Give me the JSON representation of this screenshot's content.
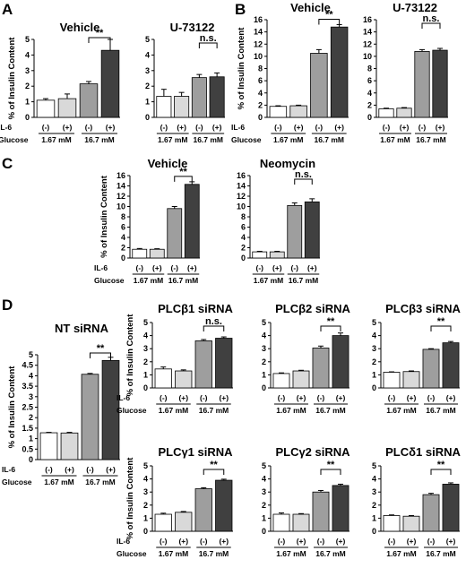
{
  "panel_labels": [
    "A",
    "B",
    "C",
    "D"
  ],
  "chart_data": [
    {
      "type": "bar",
      "panel": "A",
      "title": "Vehicle",
      "ylabel": "% of Insulin Content",
      "ylim": [
        0,
        5
      ],
      "yticks": [
        0,
        1,
        2,
        3,
        4,
        5
      ],
      "categories": [
        "(-)",
        "(+)",
        "(-)",
        "(+)"
      ],
      "row_labels": [
        "IL-6",
        "Glucose"
      ],
      "groups": [
        "1.67 mM",
        "16.7 mM"
      ],
      "values": [
        1.1,
        1.2,
        2.15,
        4.3
      ],
      "errors": [
        0.1,
        0.3,
        0.15,
        0.7
      ],
      "significance": "**"
    },
    {
      "type": "bar",
      "panel": "A",
      "title": "U-73122",
      "ylabel": "",
      "ylim": [
        0,
        5
      ],
      "yticks": [
        0,
        1,
        2,
        3,
        4,
        5
      ],
      "categories": [
        "(-)",
        "(+)",
        "(-)",
        "(+)"
      ],
      "row_labels": [
        "",
        ""
      ],
      "groups": [
        "1.67 mM",
        "16.7 mM"
      ],
      "values": [
        1.35,
        1.35,
        2.55,
        2.6
      ],
      "errors": [
        0.45,
        0.25,
        0.2,
        0.25
      ],
      "significance": "n.s."
    },
    {
      "type": "bar",
      "panel": "B",
      "title": "Vehicle",
      "ylabel": "% of Insulin Content",
      "ylim": [
        0,
        16
      ],
      "yticks": [
        0,
        2,
        4,
        6,
        8,
        10,
        12,
        14,
        16
      ],
      "categories": [
        "(-)",
        "(+)",
        "(-)",
        "(+)"
      ],
      "row_labels": [
        "IL-6",
        "Glucose"
      ],
      "groups": [
        "1.67 mM",
        "16.7 mM"
      ],
      "values": [
        1.8,
        1.9,
        10.5,
        14.8
      ],
      "errors": [
        0.1,
        0.1,
        0.6,
        0.4
      ],
      "significance": "**"
    },
    {
      "type": "bar",
      "panel": "B",
      "title": "U-73122",
      "ylabel": "",
      "ylim": [
        0,
        16
      ],
      "yticks": [
        0,
        2,
        4,
        6,
        8,
        10,
        12,
        14,
        16
      ],
      "categories": [
        "(-)",
        "(+)",
        "(-)",
        "(+)"
      ],
      "row_labels": [
        "",
        ""
      ],
      "groups": [
        "1.67 mM",
        "16.7 mM"
      ],
      "values": [
        1.4,
        1.5,
        10.8,
        11.0
      ],
      "errors": [
        0.1,
        0.1,
        0.3,
        0.3
      ],
      "significance": "n.s."
    },
    {
      "type": "bar",
      "panel": "C",
      "title": "Vehicle",
      "ylabel": "% of Insulin Content",
      "ylim": [
        0,
        16
      ],
      "yticks": [
        0,
        2,
        4,
        6,
        8,
        10,
        12,
        14,
        16
      ],
      "categories": [
        "(-)",
        "(+)",
        "(-)",
        "(+)"
      ],
      "row_labels": [
        "IL-6",
        "Glucose"
      ],
      "groups": [
        "1.67 mM",
        "16.7 mM"
      ],
      "values": [
        1.7,
        1.7,
        9.6,
        14.3
      ],
      "errors": [
        0.15,
        0.1,
        0.4,
        0.5
      ],
      "significance": "**"
    },
    {
      "type": "bar",
      "panel": "C",
      "title": "Neomycin",
      "ylabel": "",
      "ylim": [
        0,
        16
      ],
      "yticks": [
        0,
        2,
        4,
        6,
        8,
        10,
        12,
        14,
        16
      ],
      "categories": [
        "(-)",
        "(+)",
        "(-)",
        "(+)"
      ],
      "row_labels": [
        "",
        ""
      ],
      "groups": [
        "1.67 mM",
        "16.7 mM"
      ],
      "values": [
        1.2,
        1.2,
        10.2,
        10.9
      ],
      "errors": [
        0.1,
        0.1,
        0.5,
        0.6
      ],
      "significance": "n.s."
    },
    {
      "type": "bar",
      "panel": "D",
      "title": "NT siRNA",
      "ylabel": "% of Insulin Content",
      "ylim": [
        0,
        5
      ],
      "yticks": [
        0,
        0.5,
        1,
        1.5,
        2,
        2.5,
        3,
        3.5,
        4,
        4.5,
        5
      ],
      "categories": [
        "(-)",
        "(+)",
        "(-)",
        "(+)"
      ],
      "row_labels": [
        "IL-6",
        "Glucose"
      ],
      "groups": [
        "1.67 mM",
        "16.7 mM"
      ],
      "values": [
        1.28,
        1.27,
        4.07,
        4.73
      ],
      "errors": [
        0.02,
        0.03,
        0.04,
        0.15
      ],
      "significance": "**"
    },
    {
      "type": "bar",
      "panel": "D",
      "title": "PLCβ1 siRNA",
      "ylabel": "% of Insulin Content",
      "ylim": [
        0,
        5
      ],
      "yticks": [
        0,
        1,
        2,
        3,
        4,
        5
      ],
      "categories": [
        "(-)",
        "(+)",
        "(-)",
        "(+)"
      ],
      "row_labels": [
        "IL-6",
        "Glucose"
      ],
      "groups": [
        "1.67 mM",
        "16.7 mM"
      ],
      "values": [
        1.45,
        1.3,
        3.6,
        3.8
      ],
      "errors": [
        0.15,
        0.08,
        0.1,
        0.1
      ],
      "significance": "n.s."
    },
    {
      "type": "bar",
      "panel": "D",
      "title": "PLCβ2 siRNA",
      "ylabel": "",
      "ylim": [
        0,
        5
      ],
      "yticks": [
        0,
        1,
        2,
        3,
        4,
        5
      ],
      "categories": [
        "(-)",
        "(+)",
        "(-)",
        "(+)"
      ],
      "row_labels": [
        "",
        ""
      ],
      "groups": [
        "1.67 mM",
        "16.7 mM"
      ],
      "values": [
        1.1,
        1.3,
        3.05,
        4.0
      ],
      "errors": [
        0.05,
        0.05,
        0.15,
        0.2
      ],
      "significance": "**"
    },
    {
      "type": "bar",
      "panel": "D",
      "title": "PLCβ3 siRNA",
      "ylabel": "",
      "ylim": [
        0,
        5
      ],
      "yticks": [
        0,
        1,
        2,
        3,
        4,
        5
      ],
      "categories": [
        "(-)",
        "(+)",
        "(-)",
        "(+)"
      ],
      "row_labels": [
        "",
        ""
      ],
      "groups": [
        "1.67 mM",
        "16.7 mM"
      ],
      "values": [
        1.2,
        1.25,
        2.95,
        3.45
      ],
      "errors": [
        0.03,
        0.05,
        0.05,
        0.1
      ],
      "significance": "**"
    },
    {
      "type": "bar",
      "panel": "D",
      "title": "PLCγ1 siRNA",
      "ylabel": "% of Insulin Content",
      "ylim": [
        0,
        5
      ],
      "yticks": [
        0,
        1,
        2,
        3,
        4,
        5
      ],
      "categories": [
        "(-)",
        "(+)",
        "(-)",
        "(+)"
      ],
      "row_labels": [
        "IL-6",
        "Glucose"
      ],
      "groups": [
        "1.67 mM",
        "16.7 mM"
      ],
      "values": [
        1.3,
        1.45,
        3.25,
        3.9
      ],
      "errors": [
        0.08,
        0.06,
        0.08,
        0.08
      ],
      "significance": "**"
    },
    {
      "type": "bar",
      "panel": "D",
      "title": "PLCγ2 siRNA",
      "ylabel": "",
      "ylim": [
        0,
        5
      ],
      "yticks": [
        0,
        1,
        2,
        3,
        4,
        5
      ],
      "categories": [
        "(-)",
        "(+)",
        "(-)",
        "(+)"
      ],
      "row_labels": [
        "",
        ""
      ],
      "groups": [
        "1.67 mM",
        "16.7 mM"
      ],
      "values": [
        1.3,
        1.3,
        3.0,
        3.5
      ],
      "errors": [
        0.1,
        0.05,
        0.12,
        0.1
      ],
      "significance": "**"
    },
    {
      "type": "bar",
      "panel": "D",
      "title": "PLCδ1 siRNA",
      "ylabel": "",
      "ylim": [
        0,
        5
      ],
      "yticks": [
        0,
        1,
        2,
        3,
        4,
        5
      ],
      "categories": [
        "(-)",
        "(+)",
        "(-)",
        "(+)"
      ],
      "row_labels": [
        "",
        ""
      ],
      "groups": [
        "1.67 mM",
        "16.7 mM"
      ],
      "values": [
        1.2,
        1.15,
        2.8,
        3.6
      ],
      "errors": [
        0.05,
        0.05,
        0.1,
        0.1
      ],
      "significance": "**"
    }
  ],
  "bar_colors": [
    "#ffffff",
    "#d9d9d9",
    "#9e9e9e",
    "#404040"
  ]
}
